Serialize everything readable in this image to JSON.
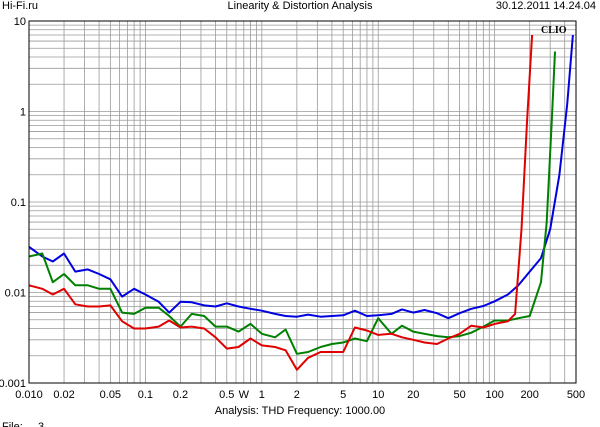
{
  "header": {
    "left": "Hi-Fi.ru",
    "center": "Linearity & Distortion Analysis",
    "right": "30.12.2011 14.24.04"
  },
  "footer": {
    "analysis": "Analysis: THD   Frequency: 1000.00"
  },
  "cutoff_text": "File: ... 3 ...",
  "colors": {
    "red": "#e00000",
    "green": "#008000",
    "blue": "#0000e0",
    "grid": "#9a9a9a"
  },
  "chart_data": {
    "type": "line",
    "title": "Linearity & Distortion Analysis",
    "watermark": "CLIO",
    "xscale": "log",
    "yscale": "log",
    "xlim": [
      0.01,
      500
    ],
    "ylim": [
      0.001,
      10
    ],
    "grid": true,
    "xticks": [
      {
        "v": 0.01,
        "label": "0.010"
      },
      {
        "v": 0.02,
        "label": "0.02"
      },
      {
        "v": 0.05,
        "label": "0.05"
      },
      {
        "v": 0.1,
        "label": "0.1"
      },
      {
        "v": 0.2,
        "label": "0.2"
      },
      {
        "v": 0.5,
        "label": "0.5"
      },
      {
        "v": 1,
        "label": "1"
      },
      {
        "v": 2,
        "label": "2"
      },
      {
        "v": 5,
        "label": "5"
      },
      {
        "v": 10,
        "label": "10"
      },
      {
        "v": 20,
        "label": "20"
      },
      {
        "v": 50,
        "label": "50"
      },
      {
        "v": 100,
        "label": "100"
      },
      {
        "v": 200,
        "label": "200"
      },
      {
        "v": 500,
        "label": "500"
      }
    ],
    "xunit_label": {
      "v": 0.7,
      "label": "W"
    },
    "yticks": [
      {
        "v": 10,
        "label": "10"
      },
      {
        "v": 1,
        "label": "1"
      },
      {
        "v": 0.1,
        "label": "0.1"
      },
      {
        "v": 0.01,
        "label": "0.01"
      },
      {
        "v": 0.001,
        "label": "0.001"
      }
    ],
    "series": [
      {
        "color": "#0000e0",
        "x": [
          0.01,
          0.013,
          0.016,
          0.02,
          0.025,
          0.032,
          0.04,
          0.05,
          0.063,
          0.08,
          0.1,
          0.13,
          0.16,
          0.2,
          0.25,
          0.32,
          0.4,
          0.5,
          0.63,
          0.8,
          1,
          1.3,
          1.6,
          2,
          2.5,
          3.2,
          4,
          5,
          6.3,
          8,
          10,
          13,
          16,
          20,
          25,
          32,
          40,
          50,
          63,
          80,
          100,
          130,
          160,
          200,
          250,
          300,
          360,
          420,
          470
        ],
        "y": [
          0.032,
          0.025,
          0.022,
          0.027,
          0.017,
          0.018,
          0.016,
          0.014,
          0.009,
          0.011,
          0.0095,
          0.0079,
          0.006,
          0.0079,
          0.0078,
          0.0072,
          0.007,
          0.0076,
          0.007,
          0.0066,
          0.0063,
          0.0058,
          0.0055,
          0.0054,
          0.0057,
          0.0054,
          0.0055,
          0.0056,
          0.0063,
          0.0055,
          0.0056,
          0.0058,
          0.0065,
          0.006,
          0.0064,
          0.0059,
          0.0052,
          0.0059,
          0.0066,
          0.0071,
          0.008,
          0.0095,
          0.012,
          0.017,
          0.024,
          0.05,
          0.2,
          1.2,
          7.0
        ]
      },
      {
        "color": "#008000",
        "x": [
          0.01,
          0.013,
          0.016,
          0.02,
          0.025,
          0.032,
          0.04,
          0.05,
          0.063,
          0.08,
          0.1,
          0.13,
          0.16,
          0.2,
          0.25,
          0.32,
          0.4,
          0.5,
          0.63,
          0.8,
          1,
          1.3,
          1.6,
          2,
          2.5,
          3.2,
          4,
          5,
          6.3,
          8,
          10,
          13,
          16,
          20,
          25,
          32,
          40,
          50,
          63,
          80,
          100,
          130,
          160,
          200,
          250,
          280,
          310,
          330
        ],
        "y": [
          0.025,
          0.027,
          0.013,
          0.016,
          0.012,
          0.012,
          0.011,
          0.011,
          0.006,
          0.0058,
          0.0068,
          0.0068,
          0.0055,
          0.0042,
          0.0058,
          0.0055,
          0.0042,
          0.0042,
          0.0037,
          0.0045,
          0.0035,
          0.0032,
          0.0039,
          0.0021,
          0.0022,
          0.0025,
          0.0027,
          0.0028,
          0.0031,
          0.0029,
          0.0052,
          0.0035,
          0.0043,
          0.0037,
          0.0035,
          0.0033,
          0.0032,
          0.0033,
          0.0036,
          0.0042,
          0.0049,
          0.0049,
          0.0052,
          0.0055,
          0.013,
          0.06,
          0.8,
          4.6
        ]
      },
      {
        "color": "#e00000",
        "x": [
          0.01,
          0.013,
          0.016,
          0.02,
          0.025,
          0.032,
          0.04,
          0.05,
          0.063,
          0.08,
          0.1,
          0.13,
          0.16,
          0.2,
          0.25,
          0.32,
          0.4,
          0.5,
          0.63,
          0.8,
          1,
          1.3,
          1.6,
          2,
          2.5,
          3.2,
          4,
          5,
          6.3,
          8,
          10,
          13,
          16,
          20,
          25,
          32,
          40,
          50,
          63,
          80,
          100,
          130,
          150,
          170,
          190,
          210
        ],
        "y": [
          0.012,
          0.011,
          0.0095,
          0.011,
          0.0074,
          0.007,
          0.007,
          0.0072,
          0.0048,
          0.004,
          0.004,
          0.0042,
          0.0049,
          0.0041,
          0.0042,
          0.004,
          0.0032,
          0.0024,
          0.0025,
          0.0031,
          0.0026,
          0.0025,
          0.0023,
          0.0014,
          0.0019,
          0.0022,
          0.0022,
          0.0022,
          0.0041,
          0.0038,
          0.0034,
          0.0035,
          0.0032,
          0.003,
          0.0028,
          0.0027,
          0.0031,
          0.0035,
          0.0043,
          0.0041,
          0.0045,
          0.0048,
          0.0058,
          0.05,
          0.8,
          7.0
        ]
      }
    ]
  }
}
